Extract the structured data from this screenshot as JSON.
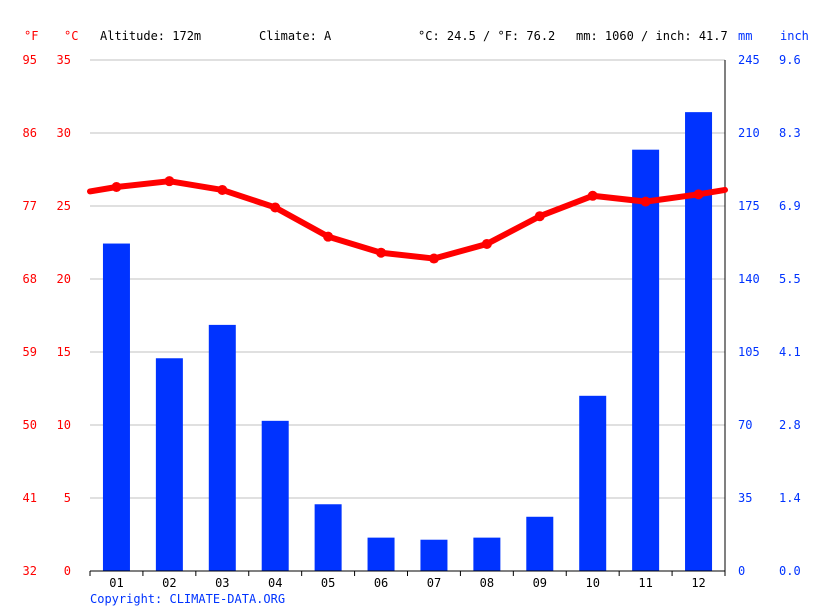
{
  "header": {
    "altitude_label": "Altitude: 172m",
    "climate_label": "Climate: A",
    "temp_summary": "°C: 24.5 / °F: 76.2",
    "precip_summary": "mm: 1060 / inch: 41.7",
    "unit_f": "°F",
    "unit_c": "°C",
    "unit_mm": "mm",
    "unit_inch": "inch"
  },
  "footer": {
    "copyright": "Copyright: CLIMATE-DATA.ORG"
  },
  "colors": {
    "temperature": "#ff0000",
    "precipitation": "#0033ff",
    "grid": "#c0c0c0"
  },
  "chart_data": {
    "type": "bar",
    "categories": [
      "01",
      "02",
      "03",
      "04",
      "05",
      "06",
      "07",
      "08",
      "09",
      "10",
      "11",
      "12"
    ],
    "series": [
      {
        "kind": "bar",
        "axis": "mm",
        "values": [
          157,
          102,
          118,
          72,
          32,
          16,
          15,
          16,
          26,
          84,
          202,
          220
        ]
      },
      {
        "kind": "line",
        "axis": "celsius",
        "values": [
          26.3,
          26.7,
          26.1,
          24.9,
          22.9,
          21.8,
          21.4,
          22.4,
          24.3,
          25.7,
          25.3,
          25.8
        ],
        "edge_values": [
          26.0,
          26.1
        ]
      }
    ],
    "axes": {
      "celsius": {
        "min": 0,
        "max": 35,
        "ticks": [
          "0",
          "5",
          "10",
          "15",
          "20",
          "25",
          "30",
          "35"
        ]
      },
      "fahrenheit": {
        "ticks": [
          "32",
          "41",
          "50",
          "59",
          "68",
          "77",
          "86",
          "95"
        ]
      },
      "mm": {
        "min": 0,
        "max": 245,
        "ticks": [
          "0",
          "35",
          "70",
          "105",
          "140",
          "175",
          "210",
          "245"
        ]
      },
      "inch": {
        "ticks": [
          "0.0",
          "1.4",
          "2.8",
          "4.1",
          "5.5",
          "6.9",
          "8.3",
          "9.6"
        ]
      }
    },
    "grid": true,
    "legend": "none"
  }
}
